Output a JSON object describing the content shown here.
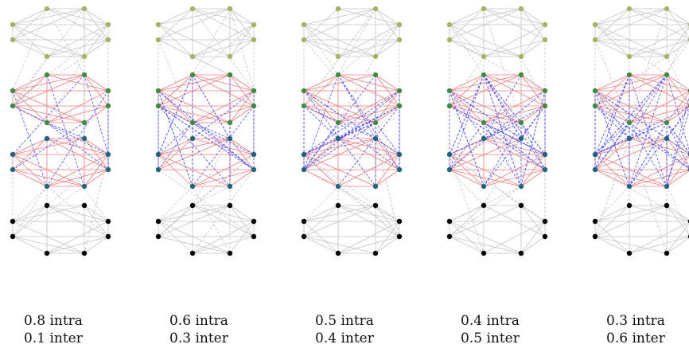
{
  "panels": [
    {
      "intra_label": "0.8 intra",
      "inter_label": "0.1 inter",
      "intra": 0.8,
      "inter": 0.1
    },
    {
      "intra_label": "0.6 intra",
      "inter_label": "0.3 inter",
      "intra": 0.6,
      "inter": 0.3
    },
    {
      "intra_label": "0.5 intra",
      "inter_label": "0.4 inter",
      "intra": 0.5,
      "inter": 0.4
    },
    {
      "intra_label": "0.4 intra",
      "inter_label": "0.5 inter",
      "intra": 0.4,
      "inter": 0.5
    },
    {
      "intra_label": "0.3 intra",
      "inter_label": "0.6 inter",
      "intra": 0.3,
      "inter": 0.6
    }
  ],
  "colors": {
    "group_top": "#a5b364",
    "group_mid_upper": "#3f8a45",
    "group_mid_lower": "#23657c",
    "group_bottom": "#000000",
    "edge_gray": "#c4c4c4",
    "edge_red": "#ee7b7b",
    "edge_blue": "#4a4aff"
  }
}
